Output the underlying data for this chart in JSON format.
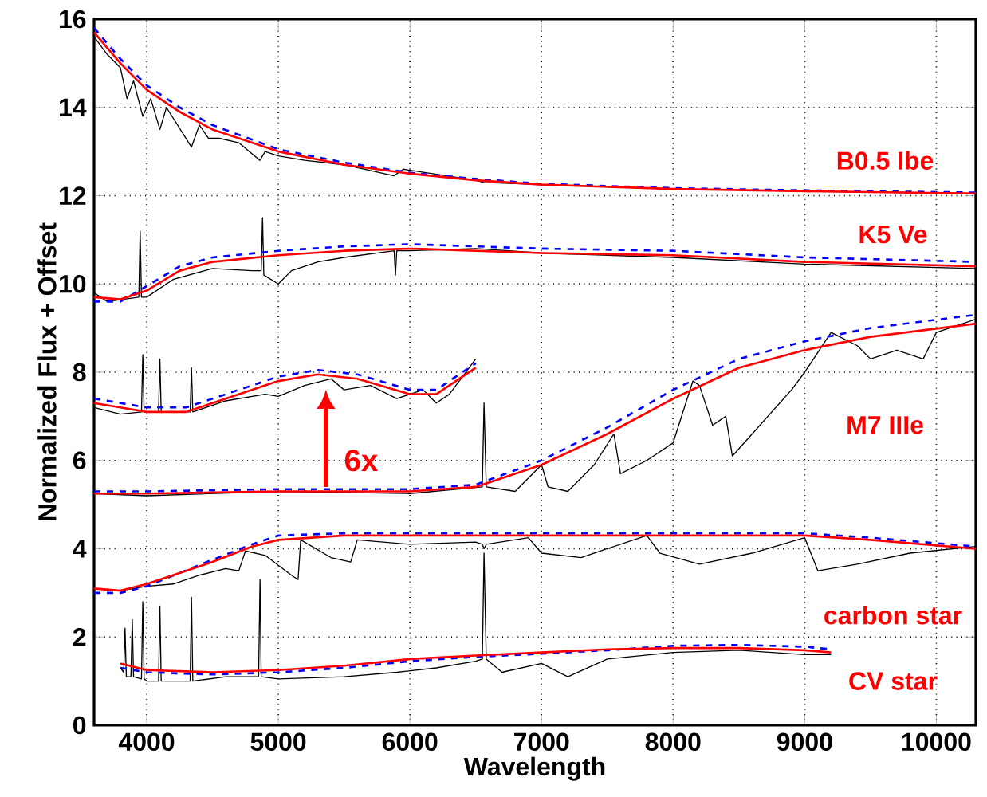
{
  "chart_data": {
    "type": "line",
    "xlabel": "Wavelength",
    "ylabel": "Normalized Flux + Offset",
    "xlim": [
      3600,
      10300
    ],
    "ylim": [
      0,
      16
    ],
    "xticks": [
      4000,
      5000,
      6000,
      7000,
      8000,
      9000,
      10000
    ],
    "yticks": [
      0,
      2,
      4,
      6,
      8,
      10,
      12,
      14,
      16
    ],
    "grid": true,
    "series": [
      {
        "color": "#000000",
        "line_style": "solid",
        "x": [
          3600,
          3700,
          3800,
          3850,
          3900,
          3970,
          4030,
          4100,
          4150,
          4340,
          4400,
          4470,
          4550,
          4700,
          4860,
          4900,
          5000,
          5200,
          5500,
          5880,
          5950,
          6500,
          6560,
          7000,
          8000,
          9000,
          10300
        ],
        "values": [
          15.6,
          15.2,
          14.9,
          14.2,
          14.6,
          13.8,
          14.2,
          13.5,
          14.0,
          13.1,
          13.6,
          13.3,
          13.3,
          13.2,
          12.8,
          13.0,
          12.9,
          12.8,
          12.7,
          12.45,
          12.6,
          12.35,
          12.3,
          12.25,
          12.15,
          12.1,
          12.05
        ]
      },
      {
        "color": "#0000ff",
        "line_style": "dashed",
        "x": [
          3600,
          3800,
          4000,
          4250,
          4500,
          5000,
          5500,
          6000,
          6500,
          7000,
          8000,
          9000,
          10300
        ],
        "values": [
          15.8,
          15.1,
          14.5,
          14.0,
          13.6,
          13.05,
          12.75,
          12.52,
          12.38,
          12.27,
          12.17,
          12.12,
          12.07
        ]
      },
      {
        "color": "#ff0000",
        "line_style": "solid",
        "x": [
          3600,
          3800,
          4000,
          4250,
          4500,
          5000,
          5500,
          6000,
          6500,
          7000,
          8000,
          9000,
          10300
        ],
        "values": [
          15.7,
          15.0,
          14.4,
          13.9,
          13.5,
          13.0,
          12.7,
          12.5,
          12.35,
          12.25,
          12.15,
          12.1,
          12.05
        ]
      },
      {
        "color": "#000000",
        "line_style": "solid",
        "x": [
          3600,
          3700,
          3940,
          3950,
          3960,
          4000,
          4200,
          4500,
          4800,
          4870,
          4880,
          4890,
          5000,
          5100,
          5300,
          5500,
          5880,
          5890,
          5900,
          6000,
          6500,
          7000,
          8000,
          9000,
          10300
        ],
        "values": [
          9.8,
          9.6,
          9.7,
          11.2,
          9.7,
          9.7,
          10.1,
          10.35,
          10.3,
          10.3,
          11.5,
          10.2,
          10.0,
          10.3,
          10.5,
          10.6,
          10.75,
          10.2,
          10.75,
          10.75,
          10.8,
          10.7,
          10.6,
          10.45,
          10.35
        ]
      },
      {
        "color": "#0000ff",
        "line_style": "dashed",
        "x": [
          3600,
          3800,
          4000,
          4250,
          4500,
          5000,
          5500,
          6000,
          6500,
          7000,
          8000,
          9000,
          10300
        ],
        "values": [
          9.6,
          9.6,
          9.95,
          10.4,
          10.6,
          10.75,
          10.85,
          10.9,
          10.85,
          10.8,
          10.75,
          10.6,
          10.5
        ]
      },
      {
        "color": "#ff0000",
        "line_style": "solid",
        "x": [
          3600,
          3800,
          4000,
          4250,
          4500,
          5000,
          5500,
          6000,
          6500,
          7000,
          8000,
          9000,
          10300
        ],
        "values": [
          9.7,
          9.65,
          9.85,
          10.3,
          10.5,
          10.65,
          10.75,
          10.8,
          10.75,
          10.7,
          10.65,
          10.5,
          10.4
        ]
      },
      {
        "color": "#000000",
        "line_style": "solid",
        "x": [
          3600,
          3800,
          3960,
          3970,
          3980,
          4000,
          4090,
          4100,
          4110,
          4300,
          4330,
          4340,
          4350,
          4600,
          4900,
          5000,
          5200,
          5400,
          5500,
          5700,
          5900,
          6100,
          6200,
          6300,
          6500
        ],
        "values": [
          7.2,
          7.05,
          7.1,
          8.4,
          7.1,
          7.1,
          7.1,
          8.3,
          7.1,
          7.1,
          7.1,
          8.1,
          7.1,
          7.35,
          7.5,
          7.45,
          7.7,
          7.85,
          7.6,
          7.7,
          7.4,
          7.6,
          7.3,
          7.5,
          8.3
        ]
      },
      {
        "color": "#0000ff",
        "line_style": "dashed",
        "x": [
          3600,
          3800,
          4000,
          4300,
          4600,
          5000,
          5300,
          5600,
          6000,
          6200,
          6500
        ],
        "values": [
          7.4,
          7.3,
          7.2,
          7.2,
          7.5,
          7.9,
          8.05,
          7.95,
          7.6,
          7.6,
          8.2
        ]
      },
      {
        "color": "#ff0000",
        "line_style": "solid",
        "x": [
          3600,
          3800,
          4000,
          4300,
          4600,
          5000,
          5300,
          5600,
          6000,
          6200,
          6500
        ],
        "values": [
          7.3,
          7.2,
          7.1,
          7.1,
          7.4,
          7.8,
          7.95,
          7.85,
          7.5,
          7.5,
          8.1
        ]
      },
      {
        "color": "#000000",
        "line_style": "solid",
        "x": [
          3600,
          4000,
          5000,
          6000,
          6550,
          6563,
          6580,
          6800,
          7000,
          7050,
          7200,
          7400,
          7550,
          7600,
          7800,
          8000,
          8150,
          8200,
          8300,
          8400,
          8450,
          8600,
          8900,
          9000,
          9200,
          9400,
          9500,
          9700,
          9900,
          10000,
          10300
        ],
        "values": [
          5.25,
          5.2,
          5.3,
          5.25,
          5.4,
          7.3,
          5.4,
          5.3,
          5.9,
          5.4,
          5.3,
          5.9,
          6.6,
          5.7,
          6.0,
          6.4,
          7.8,
          7.7,
          6.8,
          7.0,
          6.1,
          6.6,
          7.6,
          8.0,
          8.9,
          8.6,
          8.3,
          8.5,
          8.3,
          8.9,
          9.2
        ]
      },
      {
        "color": "#0000ff",
        "line_style": "dashed",
        "x": [
          3600,
          4000,
          5000,
          6000,
          6500,
          7000,
          7500,
          8000,
          8500,
          9000,
          9500,
          10300
        ],
        "values": [
          5.3,
          5.3,
          5.35,
          5.35,
          5.45,
          6.0,
          6.75,
          7.6,
          8.3,
          8.7,
          9.0,
          9.3
        ]
      },
      {
        "color": "#ff0000",
        "line_style": "solid",
        "x": [
          3600,
          4000,
          5000,
          6000,
          6500,
          7000,
          7500,
          8000,
          8500,
          9000,
          9500,
          10300
        ],
        "values": [
          5.25,
          5.25,
          5.3,
          5.3,
          5.4,
          5.9,
          6.6,
          7.4,
          8.1,
          8.5,
          8.8,
          9.1
        ]
      },
      {
        "color": "#000000",
        "line_style": "solid",
        "x": [
          3600,
          3800,
          4000,
          4200,
          4400,
          4600,
          4700,
          4750,
          4900,
          5100,
          5150,
          5170,
          5400,
          5550,
          5600,
          6000,
          6500,
          6550,
          6563,
          6580,
          6900,
          7000,
          7300,
          7500,
          7800,
          7900,
          8200,
          8600,
          9000,
          9100,
          9400,
          9800,
          10300
        ],
        "values": [
          3.1,
          3.05,
          3.15,
          3.2,
          3.4,
          3.55,
          3.5,
          3.95,
          3.85,
          3.4,
          3.3,
          4.2,
          3.8,
          3.7,
          4.2,
          4.1,
          4.15,
          4.1,
          4.0,
          4.1,
          4.25,
          3.9,
          3.8,
          4.0,
          4.3,
          3.9,
          3.65,
          3.9,
          4.25,
          3.5,
          3.65,
          3.9,
          4.05
        ]
      },
      {
        "color": "#0000ff",
        "line_style": "dashed",
        "x": [
          3600,
          3800,
          4000,
          4500,
          4800,
          5000,
          5500,
          6000,
          7000,
          8000,
          9000,
          9500,
          10300
        ],
        "values": [
          3.0,
          3.0,
          3.15,
          3.75,
          4.1,
          4.3,
          4.35,
          4.35,
          4.35,
          4.35,
          4.35,
          4.25,
          4.05
        ]
      },
      {
        "color": "#ff0000",
        "line_style": "solid",
        "x": [
          3600,
          3800,
          4000,
          4500,
          4800,
          5000,
          5500,
          6000,
          7000,
          8000,
          9000,
          9500,
          10300
        ],
        "values": [
          3.1,
          3.05,
          3.2,
          3.7,
          4.05,
          4.2,
          4.3,
          4.3,
          4.3,
          4.3,
          4.3,
          4.2,
          4.0
        ]
      },
      {
        "color": "#000000",
        "line_style": "solid",
        "x": [
          3800,
          3825,
          3835,
          3845,
          3880,
          3890,
          3900,
          3960,
          3970,
          3980,
          4000,
          4090,
          4100,
          4110,
          4330,
          4340,
          4350,
          4600,
          4850,
          4861,
          4870,
          5000,
          5500,
          5900,
          6200,
          6500,
          6550,
          6563,
          6580,
          6700,
          7000,
          7200,
          7500,
          8000,
          8500,
          9000,
          9200
        ],
        "values": [
          1.3,
          1.2,
          2.2,
          1.1,
          1.1,
          2.4,
          1.1,
          1.05,
          2.8,
          1.05,
          1.0,
          1.0,
          2.7,
          1.0,
          1.0,
          2.9,
          1.0,
          1.1,
          1.1,
          3.3,
          1.1,
          1.05,
          1.1,
          1.2,
          1.3,
          1.45,
          1.5,
          3.9,
          1.5,
          1.2,
          1.4,
          1.1,
          1.5,
          1.65,
          1.7,
          1.6,
          1.6
        ]
      },
      {
        "color": "#0000ff",
        "line_style": "dashed",
        "x": [
          3800,
          4000,
          4500,
          5000,
          5500,
          6000,
          6500,
          7000,
          7500,
          8000,
          8500,
          9000,
          9200
        ],
        "values": [
          1.3,
          1.2,
          1.15,
          1.2,
          1.3,
          1.45,
          1.55,
          1.62,
          1.7,
          1.8,
          1.82,
          1.78,
          1.72
        ]
      },
      {
        "color": "#ff0000",
        "line_style": "solid",
        "x": [
          3800,
          4000,
          4500,
          5000,
          5500,
          6000,
          6500,
          7000,
          7500,
          8000,
          8500,
          9000,
          9200
        ],
        "values": [
          1.4,
          1.25,
          1.2,
          1.25,
          1.35,
          1.5,
          1.58,
          1.65,
          1.72,
          1.75,
          1.75,
          1.7,
          1.65
        ]
      }
    ],
    "annotations": [
      "B0.5 Ibe",
      "K5 Ve",
      "M7 IIIe",
      "carbon star",
      "CV star",
      "6x"
    ]
  }
}
